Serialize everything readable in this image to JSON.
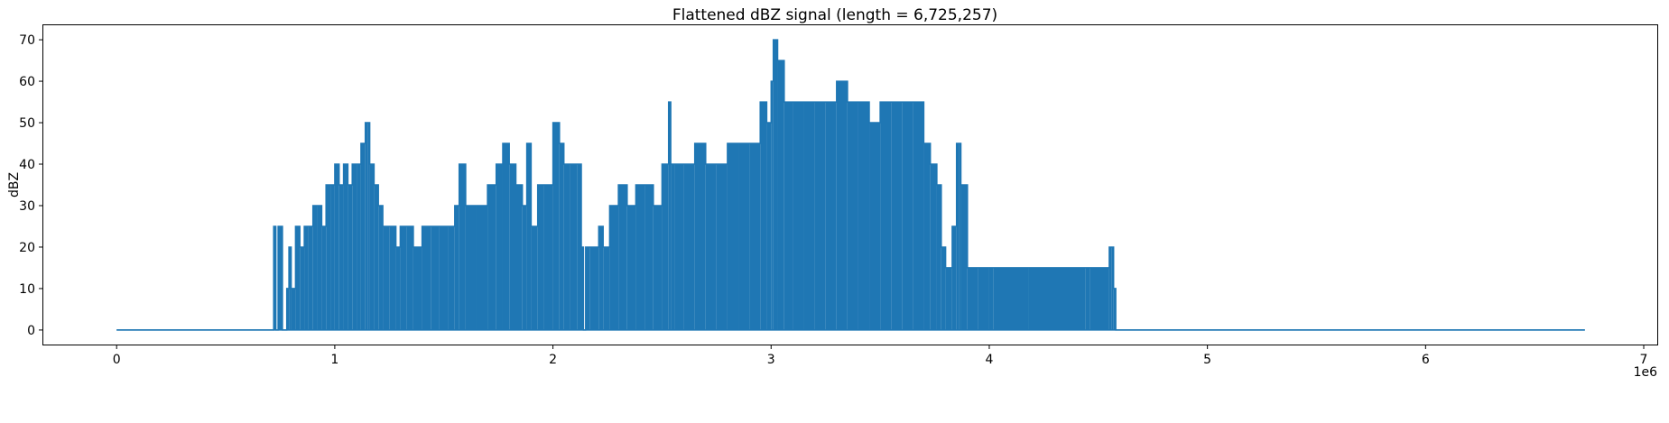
{
  "chart_data": {
    "type": "line",
    "title": "Flattened dBZ signal (length = 6,725,257)",
    "xlabel": "",
    "ylabel": "dBZ",
    "x_offset_text": "1e6",
    "xlim": [
      -0.336,
      7.062
    ],
    "ylim": [
      -3.5,
      73.5
    ],
    "x_ticks": [
      0,
      1,
      2,
      3,
      4,
      5,
      6,
      7
    ],
    "y_ticks": [
      0,
      10,
      20,
      30,
      40,
      50,
      60,
      70
    ],
    "x_tick_labels": [
      "0",
      "1",
      "2",
      "3",
      "4",
      "5",
      "6",
      "7"
    ],
    "y_tick_labels": [
      "0",
      "10",
      "20",
      "30",
      "40",
      "50",
      "60",
      "70"
    ],
    "grid": false,
    "series_color": "#1f77b4",
    "series": [
      {
        "description": "Upper envelope of signal (x in units of 1e6 samples, y in dBZ); baseline 0 elsewhere",
        "x": [
          0.0,
          0.72,
          0.73,
          0.74,
          0.76,
          0.77,
          0.78,
          0.79,
          0.8,
          0.82,
          0.84,
          0.86,
          0.88,
          0.9,
          0.92,
          0.94,
          0.96,
          0.98,
          1.0,
          1.02,
          1.04,
          1.06,
          1.08,
          1.1,
          1.12,
          1.14,
          1.15,
          1.16,
          1.18,
          1.2,
          1.22,
          1.25,
          1.28,
          1.3,
          1.33,
          1.36,
          1.4,
          1.44,
          1.48,
          1.52,
          1.55,
          1.57,
          1.6,
          1.65,
          1.7,
          1.74,
          1.77,
          1.8,
          1.83,
          1.86,
          1.88,
          1.9,
          1.93,
          1.96,
          2.0,
          2.03,
          2.05,
          2.08,
          2.11,
          2.13,
          2.14,
          2.15,
          2.17,
          2.19,
          2.21,
          2.23,
          2.26,
          2.3,
          2.34,
          2.38,
          2.42,
          2.46,
          2.5,
          2.53,
          2.54,
          2.56,
          2.6,
          2.65,
          2.7,
          2.75,
          2.8,
          2.85,
          2.9,
          2.95,
          2.98,
          3.0,
          3.01,
          3.03,
          3.06,
          3.1,
          3.15,
          3.2,
          3.25,
          3.3,
          3.35,
          3.4,
          3.45,
          3.5,
          3.55,
          3.6,
          3.65,
          3.7,
          3.73,
          3.76,
          3.78,
          3.8,
          3.83,
          3.85,
          3.86,
          3.87,
          3.9,
          3.95,
          4.0,
          4.02,
          4.18,
          4.44,
          4.46,
          4.55,
          4.56,
          4.57,
          4.58,
          6.73
        ],
        "y": [
          0,
          25,
          0,
          25,
          0,
          0,
          10,
          20,
          10,
          25,
          20,
          25,
          25,
          30,
          30,
          25,
          35,
          35,
          40,
          35,
          40,
          35,
          40,
          40,
          45,
          50,
          50,
          40,
          35,
          30,
          25,
          25,
          20,
          25,
          25,
          20,
          25,
          25,
          25,
          25,
          30,
          40,
          30,
          30,
          35,
          40,
          45,
          40,
          35,
          30,
          45,
          25,
          35,
          35,
          50,
          45,
          40,
          40,
          40,
          20,
          0,
          20,
          20,
          20,
          25,
          20,
          30,
          35,
          30,
          35,
          35,
          30,
          40,
          55,
          40,
          40,
          40,
          45,
          40,
          40,
          45,
          45,
          45,
          55,
          50,
          60,
          70,
          65,
          55,
          55,
          55,
          55,
          55,
          60,
          55,
          55,
          50,
          55,
          55,
          55,
          55,
          45,
          40,
          35,
          20,
          15,
          25,
          45,
          45,
          35,
          15,
          15,
          15,
          15,
          15,
          15,
          15,
          20,
          20,
          10,
          0,
          0
        ]
      }
    ]
  }
}
